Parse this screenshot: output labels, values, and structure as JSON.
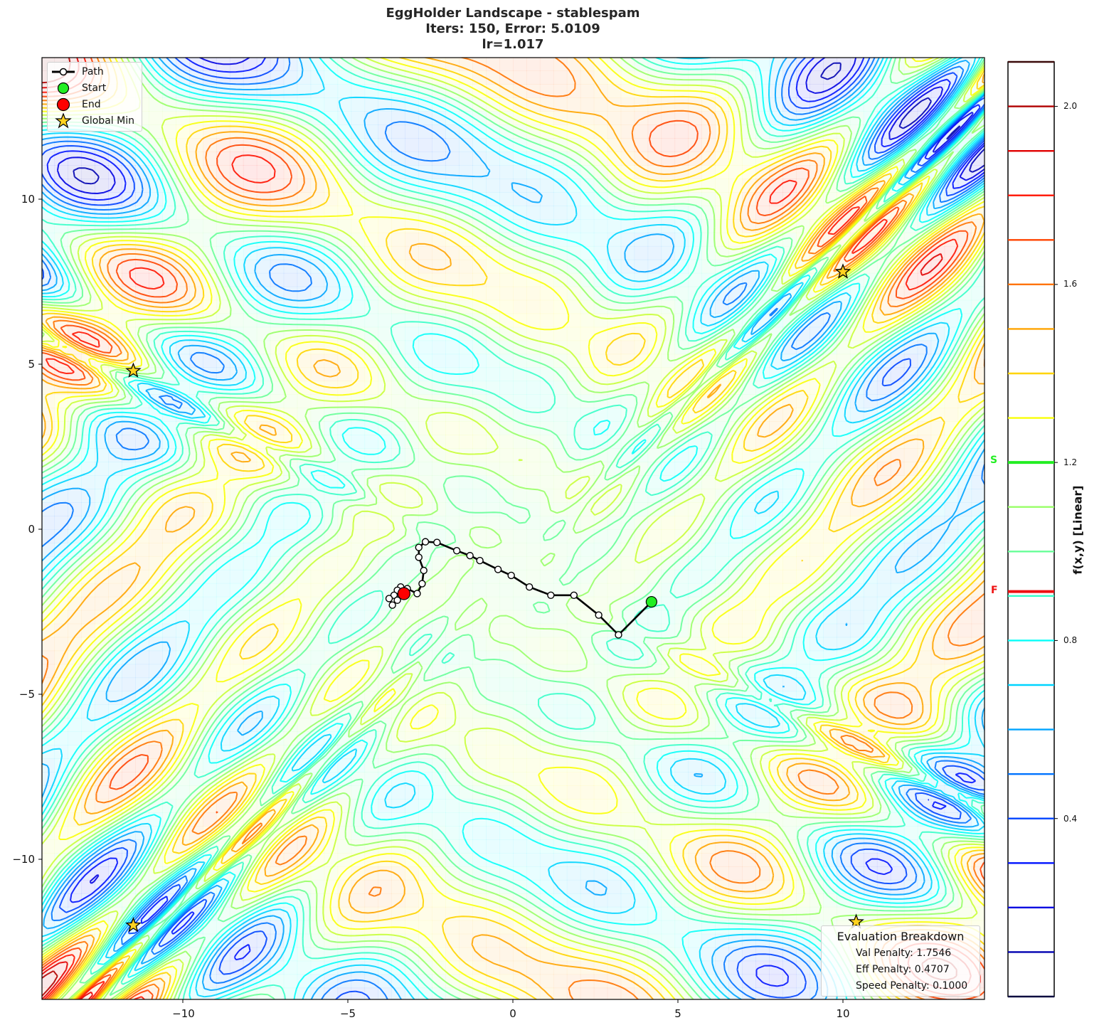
{
  "title": {
    "line1": "EggHolder Landscape - stablespam",
    "line2": "Iters: 150, Error: 5.0109",
    "line3": "lr=1.017"
  },
  "legend": {
    "items": [
      {
        "label": "Path",
        "symbol": "line-with-open-circle",
        "color": "#000000"
      },
      {
        "label": "Start",
        "symbol": "circle",
        "color": "#22ee22"
      },
      {
        "label": "End",
        "symbol": "circle",
        "color": "#ff0000"
      },
      {
        "label": "Global Min",
        "symbol": "star",
        "color": "#ffd21f"
      }
    ]
  },
  "eval_box": {
    "title": "Evaluation Breakdown",
    "lines": [
      "Val Penalty: 1.7546",
      "Eff Penalty: 0.4707",
      "Speed Penalty: 0.1000"
    ]
  },
  "axes": {
    "x_ticks": [
      "−10",
      "−5",
      "0",
      "5",
      "10"
    ],
    "y_ticks": [
      "10",
      "5",
      "0",
      "−5",
      "−10"
    ]
  },
  "colorbar": {
    "label": "f(x,y) [Linear]",
    "ticks": [
      "2.0",
      "1.6",
      "1.2",
      "0.8",
      "0.4"
    ],
    "start_marker": {
      "label": "S",
      "value": 1.2,
      "color": "#22ee22"
    },
    "final_marker": {
      "label": "F",
      "value": 0.91,
      "color": "#ee1111"
    }
  },
  "chart_data": {
    "type": "contour",
    "title": "EggHolder Landscape - stablespam / Iters: 150, Error: 5.0109 / lr=1.017",
    "xlabel": "",
    "ylabel": "",
    "xlim": [
      -14.3,
      14.3
    ],
    "ylim": [
      -14.3,
      14.3
    ],
    "x_ticks": [
      -10,
      -5,
      0,
      5,
      10
    ],
    "y_ticks": [
      -10,
      5,
      0,
      -5,
      10
    ],
    "colormap": "jet",
    "colorbar": {
      "label": "f(x,y) [Linear]",
      "range": [
        0.0,
        2.1
      ],
      "ticks": [
        0.4,
        0.8,
        1.2,
        1.6,
        2.0
      ],
      "level_step": 0.1
    },
    "global_minima": [
      [
        10.0,
        7.8
      ],
      [
        -11.5,
        4.8
      ],
      [
        -11.5,
        -12.0
      ],
      [
        10.4,
        -11.9
      ]
    ],
    "start": [
      4.2,
      -2.2
    ],
    "end": [
      -3.3,
      -1.95
    ],
    "start_value": 1.2,
    "final_value": 0.91,
    "path": [
      [
        4.2,
        -2.2
      ],
      [
        3.2,
        -3.2
      ],
      [
        2.6,
        -2.6
      ],
      [
        1.85,
        -2.0
      ],
      [
        1.15,
        -2.0
      ],
      [
        0.5,
        -1.75
      ],
      [
        -0.05,
        -1.4
      ],
      [
        -0.45,
        -1.22
      ],
      [
        -1.0,
        -0.95
      ],
      [
        -1.3,
        -0.8
      ],
      [
        -1.7,
        -0.65
      ],
      [
        -2.3,
        -0.4
      ],
      [
        -2.65,
        -0.38
      ],
      [
        -2.85,
        -0.55
      ],
      [
        -2.85,
        -0.85
      ],
      [
        -2.7,
        -1.25
      ],
      [
        -2.75,
        -1.65
      ],
      [
        -2.9,
        -1.95
      ],
      [
        -3.2,
        -1.8
      ],
      [
        -3.4,
        -1.75
      ],
      [
        -3.5,
        -1.85
      ],
      [
        -3.6,
        -2.0
      ],
      [
        -3.75,
        -2.1
      ],
      [
        -3.65,
        -2.3
      ],
      [
        -3.5,
        -2.15
      ],
      [
        -3.3,
        -1.95
      ]
    ],
    "legend_position": "upper left",
    "iters": 150,
    "error": 5.0109,
    "lr": 1.017,
    "val_penalty": 1.7546,
    "eff_penalty": 0.4707,
    "speed_penalty": 0.1
  }
}
